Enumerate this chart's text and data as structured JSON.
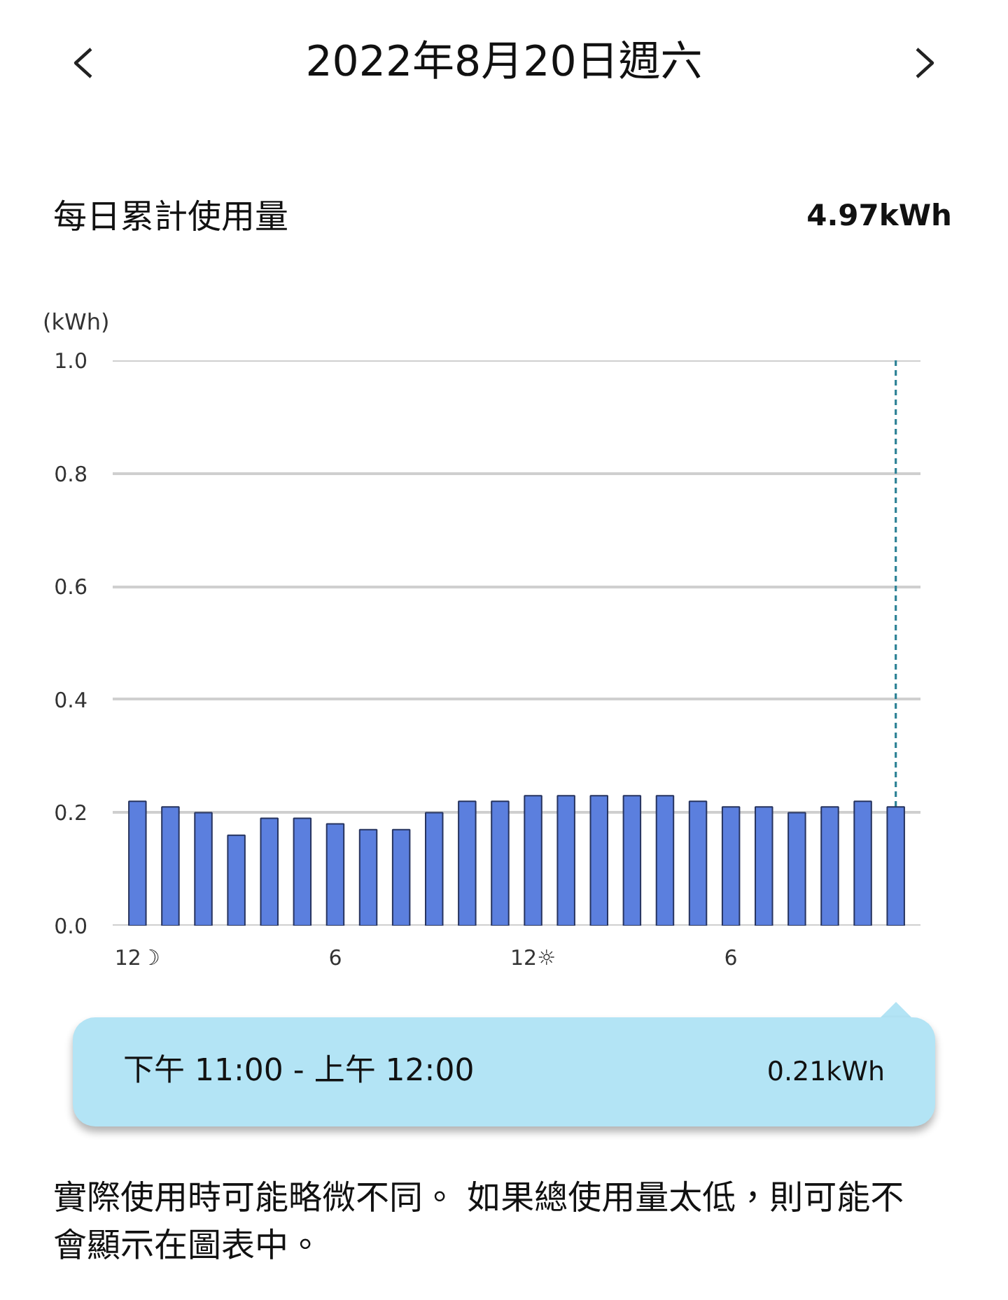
{
  "chart_data": {
    "type": "bar",
    "title": "2022年8月20日週六",
    "subtitle": "每日累計使用量",
    "ylabel": "(kWh)",
    "x": [
      "2022-08-20T00:00",
      "2022-08-20T01:00",
      "2022-08-20T02:00",
      "2022-08-20T03:00",
      "2022-08-20T04:00",
      "2022-08-20T05:00",
      "2022-08-20T06:00",
      "2022-08-20T07:00",
      "2022-08-20T08:00",
      "2022-08-20T09:00",
      "2022-08-20T10:00",
      "2022-08-20T11:00",
      "2022-08-20T12:00",
      "2022-08-20T13:00",
      "2022-08-20T14:00",
      "2022-08-20T15:00",
      "2022-08-20T16:00",
      "2022-08-20T17:00",
      "2022-08-20T18:00",
      "2022-08-20T19:00",
      "2022-08-20T20:00",
      "2022-08-20T21:00",
      "2022-08-20T22:00",
      "2022-08-20T23:00"
    ],
    "values": [
      0.22,
      0.21,
      0.2,
      0.16,
      0.19,
      0.19,
      0.18,
      0.17,
      0.17,
      0.2,
      0.22,
      0.22,
      0.23,
      0.23,
      0.23,
      0.23,
      0.23,
      0.22,
      0.21,
      0.21,
      0.2,
      0.21,
      0.22,
      0.21
    ],
    "color": "#5b7fde",
    "xlim": [
      "2022-08-19T23:15",
      "2022-08-20T23:45"
    ],
    "xticks": [
      {
        "value": "2022-08-20T00:00",
        "label": "12☽"
      },
      {
        "value": "2022-08-20T06:00",
        "label": "6"
      },
      {
        "value": "2022-08-20T12:00",
        "label": "12☼"
      },
      {
        "value": "2022-08-20T18:00",
        "label": "6"
      }
    ],
    "ylim": [
      0,
      1
    ],
    "yticks": [
      {
        "value": 0,
        "label": "0.0"
      },
      0.2,
      0.4,
      0.6,
      0.8,
      {
        "value": 1,
        "label": "1.0"
      }
    ],
    "grid": "y",
    "ref_lines": [
      {
        "axis": "x",
        "value": "2022-08-20T23:00",
        "color": "#2e8296",
        "line_style": "dashed"
      }
    ],
    "annotations": [
      "4.97kWh",
      "下午 11:00 - 上午 12:00",
      "0.21kWh",
      "實際使用時可能略微不同。 如果總使用量太低，則可能不會顯示在圖表中。"
    ]
  }
}
